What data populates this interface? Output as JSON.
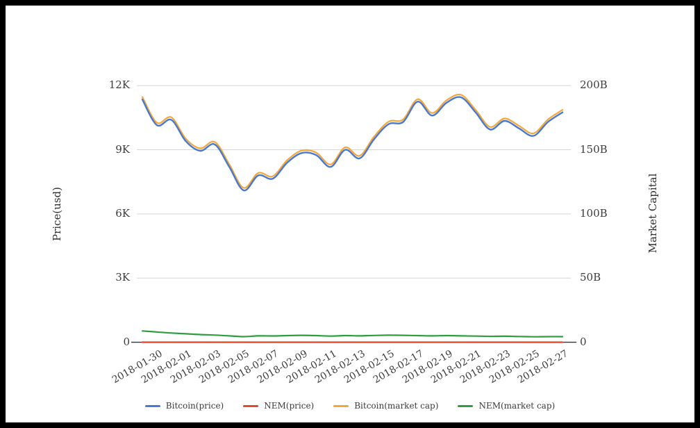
{
  "chart_data": {
    "type": "line",
    "title": "",
    "grid": "horizontal",
    "legend_position": "bottom-center",
    "x": [
      "2018-01-30",
      "2018-01-31",
      "2018-02-01",
      "2018-02-02",
      "2018-02-03",
      "2018-02-04",
      "2018-02-05",
      "2018-02-06",
      "2018-02-07",
      "2018-02-08",
      "2018-02-09",
      "2018-02-10",
      "2018-02-11",
      "2018-02-12",
      "2018-02-13",
      "2018-02-14",
      "2018-02-15",
      "2018-02-16",
      "2018-02-17",
      "2018-02-18",
      "2018-02-19",
      "2018-02-20",
      "2018-02-21",
      "2018-02-22",
      "2018-02-23",
      "2018-02-24",
      "2018-02-25",
      "2018-02-26",
      "2018-02-27",
      "2018-02-28"
    ],
    "x_tick_labels": [
      "2018-01-30",
      "2018-02-01",
      "2018-02-03",
      "2018-02-05",
      "2018-02-07",
      "2018-02-09",
      "2018-02-11",
      "2018-02-13",
      "2018-02-15",
      "2018-02-17",
      "2018-02-19",
      "2018-02-21",
      "2018-02-23",
      "2018-02-25",
      "2018-02-27"
    ],
    "left_axis": {
      "title": "Price(usd)",
      "range": [
        0,
        12000
      ],
      "ticks": [
        "0",
        "3K",
        "6K",
        "9K",
        "12K"
      ]
    },
    "right_axis": {
      "title": "Market Capital",
      "range_billions": [
        0,
        200
      ],
      "ticks": [
        "0",
        "50B",
        "100B",
        "150B",
        "200B"
      ]
    },
    "series": [
      {
        "name": "Bitcoin(price)",
        "axis": "left",
        "unit": "usd",
        "color": "#4878cf",
        "values": [
          11350,
          10150,
          10400,
          9400,
          8950,
          9250,
          8200,
          7100,
          7800,
          7650,
          8400,
          8850,
          8750,
          8200,
          9000,
          8600,
          9500,
          10200,
          10300,
          11250,
          10600,
          11200,
          11450,
          10750,
          9950,
          10350,
          10000,
          9650,
          10300,
          10750
        ]
      },
      {
        "name": "NEM(price)",
        "axis": "left",
        "unit": "usd",
        "color": "#dd4b2c",
        "values": [
          1.01,
          0.92,
          0.85,
          0.78,
          0.72,
          0.68,
          0.6,
          0.49,
          0.56,
          0.55,
          0.58,
          0.62,
          0.58,
          0.54,
          0.58,
          0.56,
          0.6,
          0.62,
          0.61,
          0.58,
          0.56,
          0.58,
          0.56,
          0.54,
          0.52,
          0.53,
          0.5,
          0.48,
          0.49,
          0.5
        ]
      },
      {
        "name": "Bitcoin(market cap)",
        "axis": "right",
        "unit": "billion_usd",
        "color": "#f2a73b",
        "values": [
          191.1,
          171.1,
          175.3,
          158.6,
          151.1,
          156.1,
          138.6,
          120.3,
          131.9,
          129.4,
          141.9,
          149.4,
          147.8,
          138.6,
          151.9,
          145.3,
          160.3,
          171.9,
          173.6,
          189.4,
          178.6,
          188.6,
          192.8,
          181.1,
          167.8,
          174.4,
          168.6,
          162.8,
          173.6,
          181.1
        ]
      },
      {
        "name": "NEM(market cap)",
        "axis": "right",
        "unit": "billion_usd",
        "color": "#2d9e3f",
        "values": [
          8.8,
          8.0,
          7.2,
          6.6,
          6.0,
          5.6,
          5.0,
          4.4,
          5.0,
          4.9,
          5.2,
          5.4,
          5.2,
          4.8,
          5.2,
          5.0,
          5.3,
          5.5,
          5.4,
          5.2,
          5.0,
          5.2,
          5.0,
          4.8,
          4.6,
          4.7,
          4.5,
          4.3,
          4.4,
          4.4
        ]
      }
    ],
    "colors": {
      "grid": "#d6d6d6",
      "axis_line": "#333333",
      "tick_text": "#3c3c3c"
    }
  }
}
